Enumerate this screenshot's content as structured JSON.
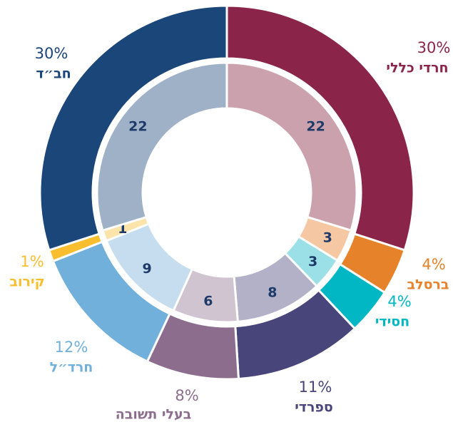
{
  "chart_data": {
    "type": "donut",
    "categories": [
      "חרדי כללי",
      "ברסלב",
      "חסידי",
      "ספרדי",
      "בעלי תשובה",
      "חרד״ל",
      "קירוב",
      "חב״ד"
    ],
    "series": [
      {
        "values": [
          30,
          4,
          4,
          11,
          8,
          12,
          1,
          30
        ],
        "value_labels": [
          "30%",
          "4%",
          "4%",
          "11%",
          "8%",
          "12%",
          "1%",
          "30%"
        ],
        "colors": [
          "#8b2449",
          "#e6822a",
          "#00b7c3",
          "#48457a",
          "#8d6d8e",
          "#70b0da",
          "#f8be2e",
          "#1a4679"
        ]
      },
      {
        "values": [
          22,
          3,
          3,
          8,
          6,
          9,
          1,
          22
        ],
        "colors": [
          "#cca1ae",
          "#f6c7a3",
          "#9ae0e6",
          "#b2b1c8",
          "#d1c4d1",
          "#c5ddee",
          "#fbe3aa",
          "#9fb1c7"
        ]
      }
    ]
  }
}
